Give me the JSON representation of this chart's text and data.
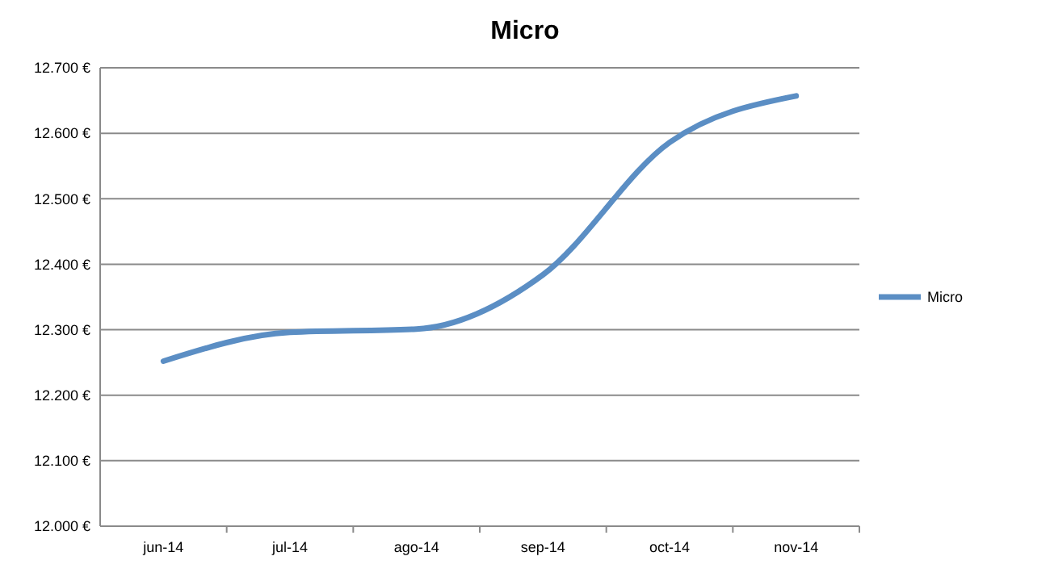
{
  "chart_data": {
    "type": "line",
    "title": "Micro",
    "categories": [
      "jun-14",
      "jul-14",
      "ago-14",
      "sep-14",
      "oct-14",
      "nov-14"
    ],
    "series": [
      {
        "name": "Micro",
        "color": "#5b8ec4",
        "values": [
          12252,
          12296,
          12301,
          12384,
          12586,
          12657
        ]
      }
    ],
    "ylim": [
      12000,
      12700
    ],
    "yticks": [
      {
        "value": 12000,
        "label": "12.000 €"
      },
      {
        "value": 12100,
        "label": "12.100 €"
      },
      {
        "value": 12200,
        "label": "12.200 €"
      },
      {
        "value": 12300,
        "label": "12.300 €"
      },
      {
        "value": 12400,
        "label": "12.400 €"
      },
      {
        "value": 12500,
        "label": "12.500 €"
      },
      {
        "value": 12600,
        "label": "12.600 €"
      },
      {
        "value": 12700,
        "label": "12.700 €"
      }
    ],
    "grid": "y",
    "legend": "right",
    "marker": "none",
    "line_style": "solid"
  }
}
